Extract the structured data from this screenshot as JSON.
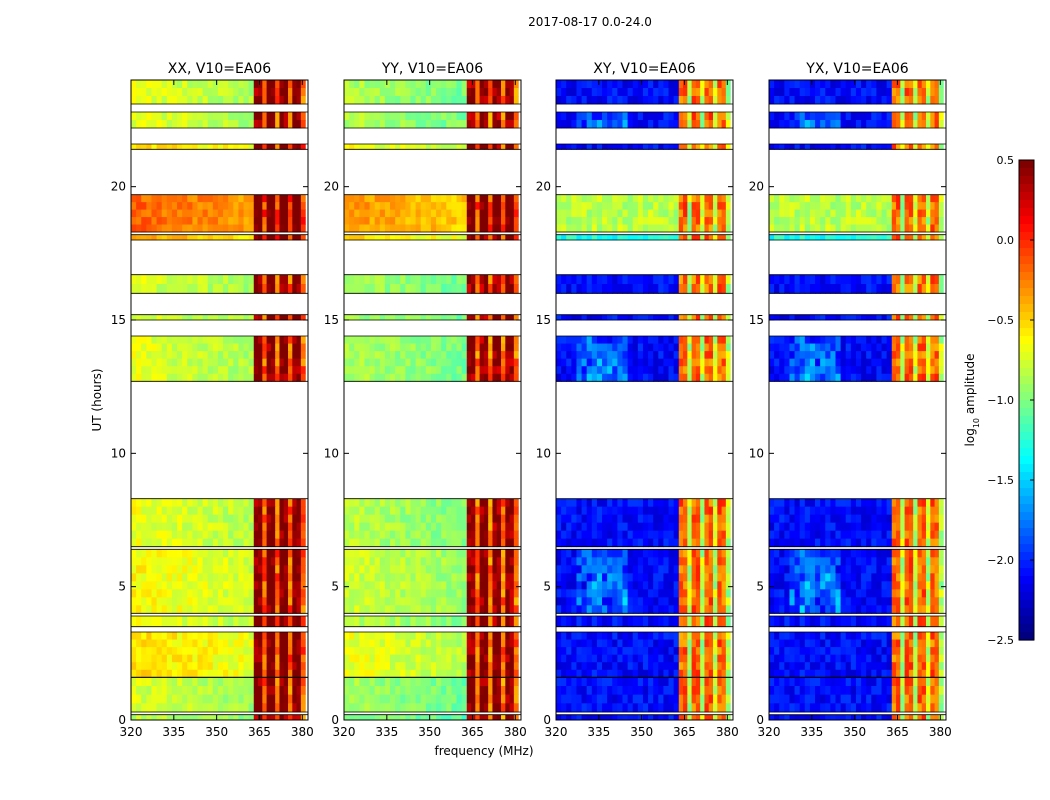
{
  "chart_data": {
    "type": "heatmap",
    "suptitle": "2017-08-17 0.0-24.0",
    "xlabel": "frequency (MHz)",
    "ylabel": "UT (hours)",
    "xlim": [
      320,
      382
    ],
    "ylim": [
      0,
      24
    ],
    "xticks": [
      320,
      335,
      350,
      365,
      380
    ],
    "yticks": [
      0,
      5,
      10,
      15,
      20
    ],
    "panels": [
      {
        "title": "XX, V10=EA06",
        "kind": "parallel",
        "base": 0.55,
        "right_band": 0.92
      },
      {
        "title": "YY, V10=EA06",
        "kind": "parallel",
        "base": 0.5,
        "right_band": 0.9
      },
      {
        "title": "XY, V10=EA06",
        "kind": "cross",
        "base": 0.08,
        "right_band": 0.7
      },
      {
        "title": "YX, V10=EA06",
        "kind": "cross",
        "base": 0.08,
        "right_band": 0.7
      }
    ],
    "band_edge_mhz": 363,
    "data_end_mhz": 381,
    "data_time_blocks": [
      {
        "from": 0.0,
        "to": 0.2,
        "level": -0.1
      },
      {
        "from": 0.3,
        "to": 1.6,
        "level": 0.0
      },
      {
        "from": 1.6,
        "to": 3.3,
        "level": 0.35
      },
      {
        "from": 3.5,
        "to": 3.9,
        "level": 0.1
      },
      {
        "from": 4.0,
        "to": 6.4,
        "level": 0.2
      },
      {
        "from": 6.5,
        "to": 8.3,
        "level": 0.1
      },
      {
        "from": 12.7,
        "to": 14.4,
        "level": 0.05
      },
      {
        "from": 15.0,
        "to": 15.2,
        "level": 0.0
      },
      {
        "from": 16.0,
        "to": 16.7,
        "level": 0.0
      },
      {
        "from": 18.0,
        "to": 18.2,
        "level": 0.6
      },
      {
        "from": 18.3,
        "to": 19.7,
        "level": 0.95
      },
      {
        "from": 21.4,
        "to": 21.6,
        "level": 0.4
      },
      {
        "from": 22.2,
        "to": 22.8,
        "level": 0.05
      },
      {
        "from": 23.1,
        "to": 24.0,
        "level": 0.05
      }
    ],
    "colorbar": {
      "label": "log10 amplitude",
      "label_main": "log",
      "label_sub": "10",
      "label_tail": " amplitude",
      "range": [
        -2.5,
        0.5
      ],
      "ticks": [
        "0.5",
        "0.0",
        "−0.5",
        "−1.0",
        "−1.5",
        "−2.0",
        "−2.5"
      ],
      "tick_values": [
        0.5,
        0.0,
        -0.5,
        -1.0,
        -1.5,
        -2.0,
        -2.5
      ],
      "colormap": "jet"
    }
  }
}
